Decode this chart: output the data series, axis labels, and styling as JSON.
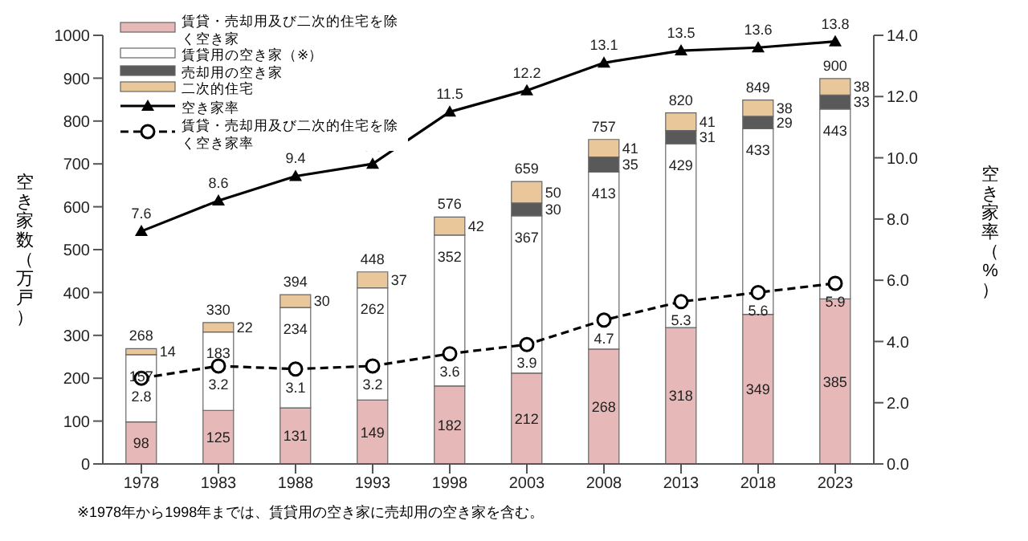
{
  "chart_data": {
    "type": "bar",
    "stacked": true,
    "categories": [
      "1978",
      "1983",
      "1988",
      "1993",
      "1998",
      "2003",
      "2008",
      "2013",
      "2018",
      "2023"
    ],
    "series": [
      {
        "name": "賃貸・売却用及び二次的住宅を除く空き家",
        "color": "#e6b8b7",
        "values": [
          98,
          125,
          131,
          149,
          182,
          212,
          268,
          318,
          349,
          385
        ]
      },
      {
        "name": "賃貸用の空き家（※）",
        "color": "#ffffff",
        "values": [
          157,
          183,
          234,
          262,
          352,
          367,
          413,
          429,
          433,
          443
        ]
      },
      {
        "name": "売却用の空き家",
        "color": "#595959",
        "values": [
          null,
          null,
          null,
          null,
          null,
          30,
          35,
          31,
          29,
          33
        ]
      },
      {
        "name": "二次的住宅",
        "color": "#e9c79b",
        "values": [
          14,
          22,
          30,
          37,
          42,
          50,
          41,
          41,
          38,
          38
        ]
      },
      {
        "name": "空き家率",
        "type": "line",
        "axis": "y2",
        "color": "#000000",
        "marker": "triangle",
        "line_style": "solid",
        "values": [
          7.6,
          8.6,
          9.4,
          9.8,
          11.5,
          12.2,
          13.1,
          13.5,
          13.6,
          13.8
        ]
      },
      {
        "name": "賃貸・売却用及び二次的住宅を除く空き家率",
        "type": "line",
        "axis": "y2",
        "color": "#000000",
        "marker": "circle",
        "line_style": "dashed",
        "values": [
          2.8,
          3.2,
          3.1,
          3.2,
          3.6,
          3.9,
          4.7,
          5.3,
          5.6,
          5.9
        ]
      }
    ],
    "totals": [
      "268",
      "330",
      "394",
      "448",
      "576",
      "659",
      "757",
      "820",
      "849",
      "900"
    ],
    "data_labels": true,
    "ylabel": "空き家数（万戸）",
    "y2label": "空き家率（%）",
    "ylim": [
      0,
      1000
    ],
    "yticks": [
      0,
      100,
      200,
      300,
      400,
      500,
      600,
      700,
      800,
      900,
      1000
    ],
    "y2lim": [
      0,
      14
    ],
    "y2ticks": [
      {
        "value": 0,
        "label": "0.0"
      },
      {
        "value": 2,
        "label": "2.0"
      },
      {
        "value": 4,
        "label": "4.0"
      },
      {
        "value": 6,
        "label": "6.0"
      },
      {
        "value": 8,
        "label": "8.0"
      },
      {
        "value": 10,
        "label": "10.0"
      },
      {
        "value": 12,
        "label": "12.0"
      },
      {
        "value": 14,
        "label": "14.0"
      }
    ],
    "legend": "top left",
    "grid": false,
    "annotations": [
      "※1978年から1998年までは、賃貸用の空き家に売却用の空き家を含む。"
    ]
  }
}
